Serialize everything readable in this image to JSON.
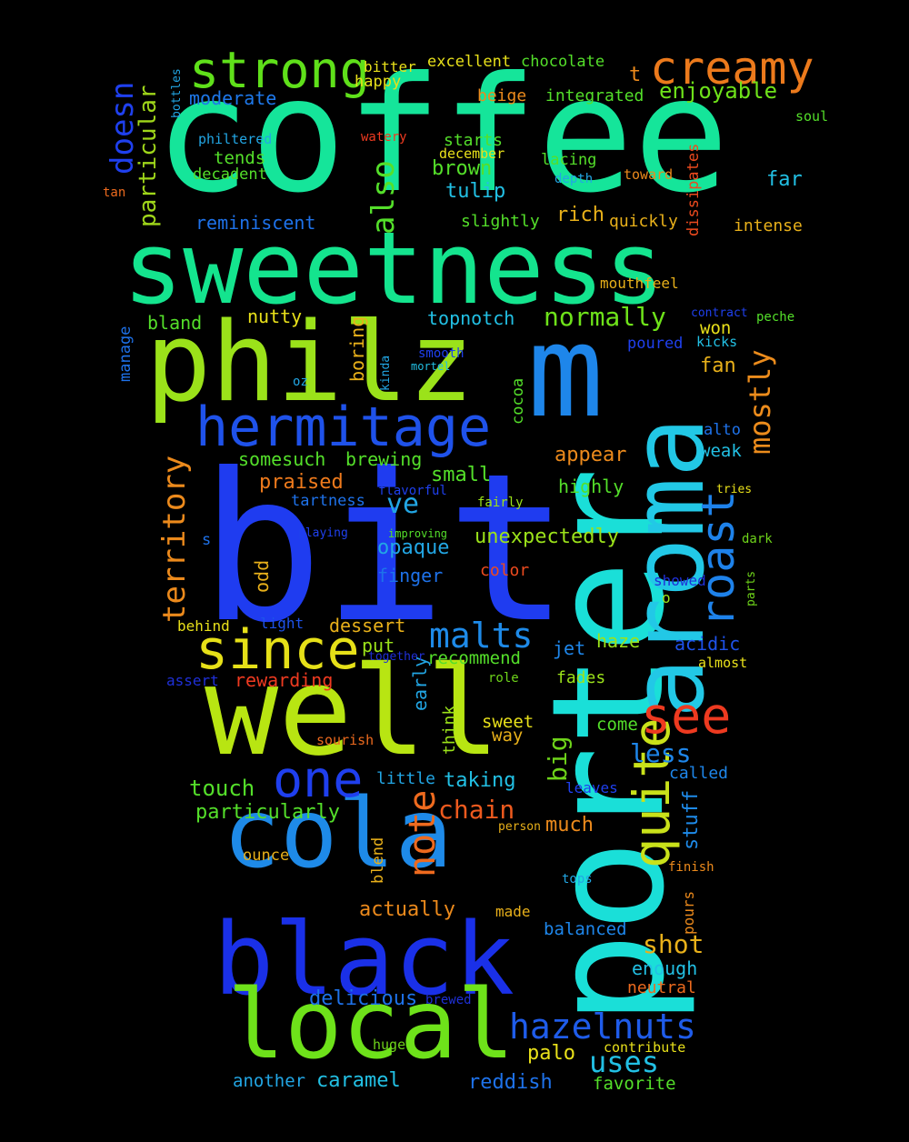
{
  "words": [
    {
      "text": "coffee",
      "color": "#15e59a"
    },
    {
      "text": "bit",
      "color": "#1f3cf0"
    },
    {
      "text": "porter",
      "color": "#1adfd8"
    },
    {
      "text": "sweetness",
      "color": "#14e48e"
    },
    {
      "text": "philz",
      "color": "#9be21a"
    },
    {
      "text": "well",
      "color": "#b8e512"
    },
    {
      "text": "m",
      "color": "#1e86ea"
    },
    {
      "text": "aroma",
      "color": "#22c8e6"
    },
    {
      "text": "black",
      "color": "#1a30e8"
    },
    {
      "text": "cola",
      "color": "#1e8ae8"
    },
    {
      "text": "local",
      "color": "#6ee21a"
    },
    {
      "text": "hermitage",
      "color": "#1f52ea"
    },
    {
      "text": "since",
      "color": "#e6e018"
    },
    {
      "text": "one",
      "color": "#1f3fee"
    },
    {
      "text": "strong",
      "color": "#5fe01a"
    },
    {
      "text": "creamy",
      "color": "#ec7a1c"
    },
    {
      "text": "quite",
      "color": "#c9e11a"
    },
    {
      "text": "roast",
      "color": "#1e82ea"
    },
    {
      "text": "see",
      "color": "#ee3a20"
    },
    {
      "text": "territory",
      "color": "#ec8a1c"
    },
    {
      "text": "note",
      "color": "#ee6a1e"
    },
    {
      "text": "malts",
      "color": "#1e8ae8"
    },
    {
      "text": "hazelnuts",
      "color": "#1f5cea"
    },
    {
      "text": "mostly",
      "color": "#ec8c1c"
    },
    {
      "text": "also",
      "color": "#54df2a"
    },
    {
      "text": "doesn",
      "color": "#1f40ee"
    },
    {
      "text": "particular",
      "color": "#9fd61a"
    },
    {
      "text": "ve",
      "color": "#22a6e4"
    },
    {
      "text": "big",
      "color": "#6ed31a"
    },
    {
      "text": "shot",
      "color": "#e8b01a"
    },
    {
      "text": "uses",
      "color": "#22c0e4"
    },
    {
      "text": "chain",
      "color": "#ee5a1e"
    },
    {
      "text": "normally",
      "color": "#6ee21a"
    },
    {
      "text": "enjoyable",
      "color": "#6ee21a"
    },
    {
      "text": "moderate",
      "color": "#1e78ea"
    },
    {
      "text": "reminiscent",
      "color": "#1e72ea"
    },
    {
      "text": "less",
      "color": "#1e86ea"
    },
    {
      "text": "stuff",
      "color": "#1e8ae8"
    },
    {
      "text": "touch",
      "color": "#54df2a"
    },
    {
      "text": "particularly",
      "color": "#54df2a"
    },
    {
      "text": "small",
      "color": "#54df2a"
    },
    {
      "text": "unexpectedly",
      "color": "#9be21a"
    },
    {
      "text": "opaque",
      "color": "#22a6e4"
    },
    {
      "text": "praised",
      "color": "#ee7a1c"
    },
    {
      "text": "appear",
      "color": "#ec8a1c"
    },
    {
      "text": "somesuch",
      "color": "#54df2a"
    },
    {
      "text": "brewing",
      "color": "#54df2a"
    },
    {
      "text": "tulip",
      "color": "#22c0e4"
    },
    {
      "text": "brown",
      "color": "#54df2a"
    },
    {
      "text": "rich",
      "color": "#e8b01a"
    },
    {
      "text": "topnotch",
      "color": "#22c0e4"
    },
    {
      "text": "caramel",
      "color": "#22c0e4"
    },
    {
      "text": "reddish",
      "color": "#1e72ea"
    },
    {
      "text": "palo",
      "color": "#e8e01a"
    },
    {
      "text": "favorite",
      "color": "#54df2a"
    },
    {
      "text": "another",
      "color": "#22a6e4"
    },
    {
      "text": "delicious",
      "color": "#1e72ea"
    },
    {
      "text": "actually",
      "color": "#ec8a1c"
    },
    {
      "text": "balanced",
      "color": "#1e86ea"
    },
    {
      "text": "enough",
      "color": "#22c0e4"
    },
    {
      "text": "neutral",
      "color": "#ec6a1e"
    },
    {
      "text": "dessert",
      "color": "#e8b01a"
    },
    {
      "text": "put",
      "color": "#9be21a"
    },
    {
      "text": "recommend",
      "color": "#54df2a"
    },
    {
      "text": "haze",
      "color": "#9be21a"
    },
    {
      "text": "acidic",
      "color": "#1e52ea"
    },
    {
      "text": "jet",
      "color": "#1e86ea"
    },
    {
      "text": "fades",
      "color": "#9be21a"
    },
    {
      "text": "sweet",
      "color": "#e8e01a"
    },
    {
      "text": "way",
      "color": "#e8b01a"
    },
    {
      "text": "come",
      "color": "#54df2a"
    },
    {
      "text": "taking",
      "color": "#22c0e4"
    },
    {
      "text": "little",
      "color": "#22a6e4"
    },
    {
      "text": "much",
      "color": "#ec8a1c"
    },
    {
      "text": "called",
      "color": "#1e86ea"
    },
    {
      "text": "rewarding",
      "color": "#ee3a20"
    },
    {
      "text": "assert",
      "color": "#1f30d8"
    },
    {
      "text": "behind",
      "color": "#e8e01a"
    },
    {
      "text": "light",
      "color": "#1e52ea"
    },
    {
      "text": "finger",
      "color": "#1e72ea"
    },
    {
      "text": "color",
      "color": "#ec4a1e"
    },
    {
      "text": "highly",
      "color": "#54df2a"
    },
    {
      "text": "fan",
      "color": "#e8b01a"
    },
    {
      "text": "weak",
      "color": "#22c0e4"
    },
    {
      "text": "alto",
      "color": "#1e72ea"
    },
    {
      "text": "won",
      "color": "#e8e01a"
    },
    {
      "text": "poured",
      "color": "#1f40ee"
    },
    {
      "text": "kicks",
      "color": "#22c0e4"
    },
    {
      "text": "nutty",
      "color": "#e8e01a"
    },
    {
      "text": "bland",
      "color": "#54df2a"
    },
    {
      "text": "manage",
      "color": "#1e72ea"
    },
    {
      "text": "boring",
      "color": "#e8b01a"
    },
    {
      "text": "cocoa",
      "color": "#54df2a"
    },
    {
      "text": "odd",
      "color": "#e8b01a"
    },
    {
      "text": "early",
      "color": "#22a6e4"
    },
    {
      "text": "think",
      "color": "#9be21a"
    },
    {
      "text": "ounce",
      "color": "#e8b01a"
    },
    {
      "text": "blend",
      "color": "#e8b01a"
    },
    {
      "text": "made",
      "color": "#e8b01a"
    },
    {
      "text": "pours",
      "color": "#ec8a1c"
    },
    {
      "text": "huge",
      "color": "#6ed31a"
    },
    {
      "text": "contribute",
      "color": "#e8e01a"
    },
    {
      "text": "tops",
      "color": "#22a6e4"
    },
    {
      "text": "finish",
      "color": "#ec8a1c"
    },
    {
      "text": "brewed",
      "color": "#1f30d8"
    },
    {
      "text": "person",
      "color": "#e8b01a"
    },
    {
      "text": "leaves",
      "color": "#1f40ee"
    },
    {
      "text": "sourish",
      "color": "#ec6a1e"
    },
    {
      "text": "role",
      "color": "#6ed31a"
    },
    {
      "text": "together",
      "color": "#1f30d8"
    },
    {
      "text": "almost",
      "color": "#e8e01a"
    },
    {
      "text": "o",
      "color": "#9be21a"
    },
    {
      "text": "showed",
      "color": "#1f30d8"
    },
    {
      "text": "parts",
      "color": "#6ed31a"
    },
    {
      "text": "dark",
      "color": "#6ed31a"
    },
    {
      "text": "tries",
      "color": "#e8e01a"
    },
    {
      "text": "fairly",
      "color": "#9be21a"
    },
    {
      "text": "flavorful",
      "color": "#1f40ee"
    },
    {
      "text": "tartness",
      "color": "#1e72ea"
    },
    {
      "text": "playing",
      "color": "#1f40ee"
    },
    {
      "text": "improving",
      "color": "#54df2a"
    },
    {
      "text": "s",
      "color": "#1e72ea"
    },
    {
      "text": "oz",
      "color": "#22a6e4"
    },
    {
      "text": "kinda",
      "color": "#22a6e4"
    },
    {
      "text": "mortel",
      "color": "#22c0e4"
    },
    {
      "text": "smooth",
      "color": "#1f40ee"
    },
    {
      "text": "contract",
      "color": "#1f40ee"
    },
    {
      "text": "peche",
      "color": "#54df2a"
    },
    {
      "text": "mouthfeel",
      "color": "#e8b01a"
    },
    {
      "text": "intense",
      "color": "#e8b01a"
    },
    {
      "text": "quickly",
      "color": "#e8b01a"
    },
    {
      "text": "dissipates",
      "color": "#ec4a1e"
    },
    {
      "text": "slightly",
      "color": "#54df2a"
    },
    {
      "text": "far",
      "color": "#22c0e4"
    },
    {
      "text": "toward",
      "color": "#ec8a1c"
    },
    {
      "text": "depth",
      "color": "#22a6e4"
    },
    {
      "text": "lacing",
      "color": "#54df2a"
    },
    {
      "text": "soul",
      "color": "#54df2a"
    },
    {
      "text": "december",
      "color": "#e8e01a"
    },
    {
      "text": "starts",
      "color": "#54df2a"
    },
    {
      "text": "watery",
      "color": "#ee3a20"
    },
    {
      "text": "philtered",
      "color": "#22a6e4"
    },
    {
      "text": "tends",
      "color": "#54df2a"
    },
    {
      "text": "decadent",
      "color": "#54df2a"
    },
    {
      "text": "tan",
      "color": "#ec6a1e"
    },
    {
      "text": "bottles",
      "color": "#22a6e4"
    },
    {
      "text": "happy",
      "color": "#e8e01a"
    },
    {
      "text": "bitter",
      "color": "#e8e01a"
    },
    {
      "text": "excellent",
      "color": "#e8e01a"
    },
    {
      "text": "chocolate",
      "color": "#54df2a"
    },
    {
      "text": "integrated",
      "color": "#54df2a"
    },
    {
      "text": "beige",
      "color": "#ec8a1c"
    },
    {
      "text": "t",
      "color": "#ec8a1c"
    }
  ]
}
